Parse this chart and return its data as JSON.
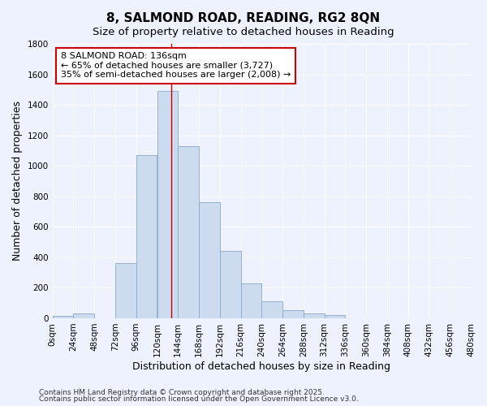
{
  "title": "8, SALMOND ROAD, READING, RG2 8QN",
  "subtitle": "Size of property relative to detached houses in Reading",
  "xlabel": "Distribution of detached houses by size in Reading",
  "ylabel": "Number of detached properties",
  "bin_edges": [
    0,
    24,
    48,
    72,
    96,
    120,
    144,
    168,
    192,
    216,
    240,
    264,
    288,
    312,
    336,
    360,
    384,
    408,
    432,
    456,
    480
  ],
  "bar_values": [
    15,
    30,
    0,
    360,
    1070,
    1490,
    1130,
    760,
    440,
    230,
    110,
    55,
    30,
    20,
    0,
    0,
    0,
    0,
    0,
    0
  ],
  "bar_color": "#ccdcee",
  "bar_edge_color": "#88aac8",
  "property_size": 136,
  "vline_color": "#cc0000",
  "annotation_line1": "8 SALMOND ROAD: 136sqm",
  "annotation_line2": "← 65% of detached houses are smaller (3,727)",
  "annotation_line3": "35% of semi-detached houses are larger (2,008) →",
  "annotation_box_color": "#ffffff",
  "annotation_box_edge": "#cc0000",
  "ylim": [
    0,
    1800
  ],
  "yticks": [
    0,
    200,
    400,
    600,
    800,
    1000,
    1200,
    1400,
    1600,
    1800
  ],
  "background_color": "#eef2ff",
  "grid_color": "#ffffff",
  "footnote1": "Contains HM Land Registry data © Crown copyright and database right 2025.",
  "footnote2": "Contains public sector information licensed under the Open Government Licence v3.0.",
  "title_fontsize": 11,
  "subtitle_fontsize": 9.5,
  "axis_label_fontsize": 9,
  "tick_fontsize": 7.5,
  "annotation_fontsize": 8
}
